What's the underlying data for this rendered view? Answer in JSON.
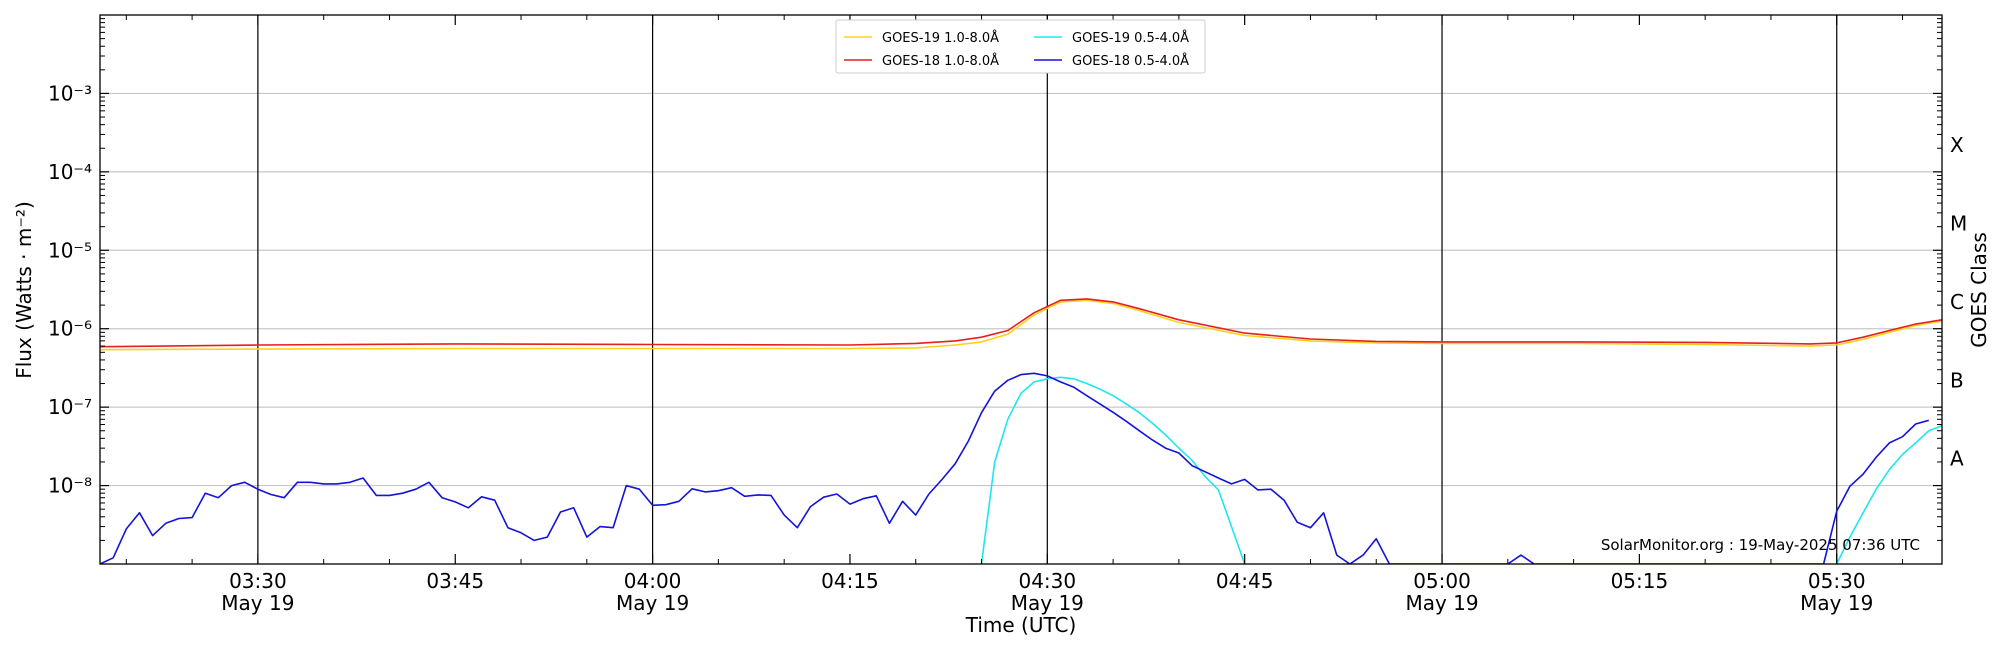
{
  "chart_data": {
    "type": "line",
    "xlabel": "Time (UTC)",
    "ylabel": "Flux (Watts · m⁻²)",
    "y2label": "GOES Class",
    "yscale": "log",
    "ylim": [
      1e-09,
      0.01
    ],
    "xlim": [
      "2025-05-19 03:18",
      "2025-05-19 05:38"
    ],
    "grid": "horizontal",
    "legend_position": "top-center",
    "credit": "SolarMonitor.org : 19-May-2025 07:36 UTC",
    "y_ticks": [
      {
        "value": 0.001,
        "label": "10⁻³"
      },
      {
        "value": 0.0001,
        "label": "10⁻⁴"
      },
      {
        "value": 1e-05,
        "label": "10⁻⁵"
      },
      {
        "value": 1e-06,
        "label": "10⁻⁶"
      },
      {
        "value": 1e-07,
        "label": "10⁻⁷"
      },
      {
        "value": 1e-08,
        "label": "10⁻⁸"
      }
    ],
    "x_ticks": [
      {
        "time": "03:30",
        "label": "03:30",
        "sublabel": "May 19",
        "major": true
      },
      {
        "time": "03:45",
        "label": "03:45",
        "sublabel": "",
        "major": false
      },
      {
        "time": "04:00",
        "label": "04:00",
        "sublabel": "May 19",
        "major": true
      },
      {
        "time": "04:15",
        "label": "04:15",
        "sublabel": "",
        "major": false
      },
      {
        "time": "04:30",
        "label": "04:30",
        "sublabel": "May 19",
        "major": true
      },
      {
        "time": "04:45",
        "label": "04:45",
        "sublabel": "",
        "major": false
      },
      {
        "time": "05:00",
        "label": "05:00",
        "sublabel": "May 19",
        "major": true
      },
      {
        "time": "05:15",
        "label": "05:15",
        "sublabel": "",
        "major": false
      },
      {
        "time": "05:30",
        "label": "05:30",
        "sublabel": "May 19",
        "major": true
      }
    ],
    "goes_classes": [
      {
        "label": "X",
        "value": 0.00022
      },
      {
        "label": "M",
        "value": 2.2e-05
      },
      {
        "label": "C",
        "value": 2.2e-06
      },
      {
        "label": "B",
        "value": 2.2e-07
      },
      {
        "label": "A",
        "value": 2.2e-08
      }
    ],
    "series": [
      {
        "name": "GOES-19 1.0-8.0Å",
        "color": "#ffd11a",
        "points": [
          [
            "03:18",
            5.4e-07
          ],
          [
            "03:30",
            5.5e-07
          ],
          [
            "03:45",
            5.6e-07
          ],
          [
            "04:00",
            5.6e-07
          ],
          [
            "04:15",
            5.6e-07
          ],
          [
            "04:20",
            5.7e-07
          ],
          [
            "04:23",
            6.2e-07
          ],
          [
            "04:25",
            6.8e-07
          ],
          [
            "04:27",
            8.5e-07
          ],
          [
            "04:29",
            1.5e-06
          ],
          [
            "04:31",
            2.2e-06
          ],
          [
            "04:33",
            2.3e-06
          ],
          [
            "04:35",
            2.1e-06
          ],
          [
            "04:37",
            1.7e-06
          ],
          [
            "04:40",
            1.2e-06
          ],
          [
            "04:45",
            8.2e-07
          ],
          [
            "04:50",
            7e-07
          ],
          [
            "04:55",
            6.6e-07
          ],
          [
            "05:00",
            6.5e-07
          ],
          [
            "05:10",
            6.5e-07
          ],
          [
            "05:20",
            6.3e-07
          ],
          [
            "05:28",
            6e-07
          ],
          [
            "05:30",
            6.2e-07
          ],
          [
            "05:32",
            7.3e-07
          ],
          [
            "05:34",
            9e-07
          ],
          [
            "05:36",
            1.1e-06
          ],
          [
            "05:38",
            1.25e-06
          ]
        ]
      },
      {
        "name": "GOES-18 1.0-8.0Å",
        "color": "#e81f1f",
        "points": [
          [
            "03:18",
            5.9e-07
          ],
          [
            "03:30",
            6.2e-07
          ],
          [
            "03:45",
            6.4e-07
          ],
          [
            "04:00",
            6.3e-07
          ],
          [
            "04:15",
            6.2e-07
          ],
          [
            "04:20",
            6.5e-07
          ],
          [
            "04:23",
            7e-07
          ],
          [
            "04:25",
            7.8e-07
          ],
          [
            "04:27",
            9.5e-07
          ],
          [
            "04:29",
            1.6e-06
          ],
          [
            "04:31",
            2.3e-06
          ],
          [
            "04:33",
            2.4e-06
          ],
          [
            "04:35",
            2.2e-06
          ],
          [
            "04:37",
            1.8e-06
          ],
          [
            "04:40",
            1.3e-06
          ],
          [
            "04:45",
            8.8e-07
          ],
          [
            "04:50",
            7.4e-07
          ],
          [
            "04:55",
            6.9e-07
          ],
          [
            "05:00",
            6.8e-07
          ],
          [
            "05:10",
            6.8e-07
          ],
          [
            "05:20",
            6.7e-07
          ],
          [
            "05:28",
            6.4e-07
          ],
          [
            "05:30",
            6.6e-07
          ],
          [
            "05:32",
            7.8e-07
          ],
          [
            "05:34",
            9.5e-07
          ],
          [
            "05:36",
            1.15e-06
          ],
          [
            "05:38",
            1.3e-06
          ]
        ]
      },
      {
        "name": "GOES-19 0.5-4.0Å",
        "color": "#1ee6f0",
        "segments": [
          [
            [
              "04:25",
              1e-09
            ],
            [
              "04:26",
              2e-08
            ],
            [
              "04:27",
              7e-08
            ],
            [
              "04:28",
              1.5e-07
            ],
            [
              "04:29",
              2.1e-07
            ],
            [
              "04:30",
              2.3e-07
            ],
            [
              "04:31",
              2.4e-07
            ],
            [
              "04:32",
              2.3e-07
            ],
            [
              "04:33",
              2e-07
            ],
            [
              "04:34",
              1.7e-07
            ],
            [
              "04:35",
              1.4e-07
            ],
            [
              "04:36",
              1.1e-07
            ],
            [
              "04:37",
              8.5e-08
            ],
            [
              "04:38",
              6.2e-08
            ],
            [
              "04:39",
              4.4e-08
            ],
            [
              "04:40",
              3e-08
            ],
            [
              "04:41",
              2.1e-08
            ],
            [
              "04:42",
              1.3e-08
            ],
            [
              "04:43",
              8.8e-09
            ],
            [
              "04:44",
              3e-09
            ],
            [
              "04:45",
              1e-09
            ]
          ],
          [
            [
              "05:30",
              1e-09
            ],
            [
              "05:31",
              2.2e-09
            ],
            [
              "05:32",
              4.5e-09
            ],
            [
              "05:33",
              9e-09
            ],
            [
              "05:34",
              1.6e-08
            ],
            [
              "05:35",
              2.5e-08
            ],
            [
              "05:36",
              3.5e-08
            ],
            [
              "05:37",
              5e-08
            ],
            [
              "05:38",
              5.8e-08
            ]
          ]
        ]
      },
      {
        "name": "GOES-18 0.5-4.0Å",
        "color": "#1414d9",
        "points": [
          [
            "03:18",
            1e-09
          ],
          [
            "03:19",
            1.2e-09
          ],
          [
            "03:20",
            2.8e-09
          ],
          [
            "03:21",
            4.5e-09
          ],
          [
            "03:22",
            2.3e-09
          ],
          [
            "03:23",
            3.3e-09
          ],
          [
            "03:24",
            3.8e-09
          ],
          [
            "03:25",
            3.9e-09
          ],
          [
            "03:26",
            8e-09
          ],
          [
            "03:27",
            7e-09
          ],
          [
            "03:28",
            1e-08
          ],
          [
            "03:29",
            1.1e-08
          ],
          [
            "03:30",
            9e-09
          ],
          [
            "03:31",
            7.7e-09
          ],
          [
            "03:32",
            7e-09
          ],
          [
            "03:33",
            1.1e-08
          ],
          [
            "03:34",
            1.1e-08
          ],
          [
            "03:35",
            1.05e-08
          ],
          [
            "03:36",
            1.05e-08
          ],
          [
            "03:37",
            1.1e-08
          ],
          [
            "03:38",
            1.25e-08
          ],
          [
            "03:39",
            7.5e-09
          ],
          [
            "03:40",
            7.5e-09
          ],
          [
            "03:41",
            8e-09
          ],
          [
            "03:42",
            9e-09
          ],
          [
            "03:43",
            1.1e-08
          ],
          [
            "03:44",
            7e-09
          ],
          [
            "03:45",
            6.2e-09
          ],
          [
            "03:46",
            5.2e-09
          ],
          [
            "03:47",
            7.2e-09
          ],
          [
            "03:48",
            6.5e-09
          ],
          [
            "03:49",
            2.9e-09
          ],
          [
            "03:50",
            2.5e-09
          ],
          [
            "03:51",
            2e-09
          ],
          [
            "03:52",
            2.2e-09
          ],
          [
            "03:53",
            4.6e-09
          ],
          [
            "03:54",
            5.2e-09
          ],
          [
            "03:55",
            2.2e-09
          ],
          [
            "03:56",
            3e-09
          ],
          [
            "03:57",
            2.9e-09
          ],
          [
            "03:58",
            1e-08
          ],
          [
            "03:59",
            9e-09
          ],
          [
            "04:00",
            5.6e-09
          ],
          [
            "04:01",
            5.7e-09
          ],
          [
            "04:02",
            6.3e-09
          ],
          [
            "04:03",
            9.1e-09
          ],
          [
            "04:04",
            8.3e-09
          ],
          [
            "04:05",
            8.6e-09
          ],
          [
            "04:06",
            9.4e-09
          ],
          [
            "04:07",
            7.3e-09
          ],
          [
            "04:08",
            7.6e-09
          ],
          [
            "04:09",
            7.5e-09
          ],
          [
            "04:10",
            4.2e-09
          ],
          [
            "04:11",
            2.9e-09
          ],
          [
            "04:12",
            5.4e-09
          ],
          [
            "04:13",
            7.1e-09
          ],
          [
            "04:14",
            7.8e-09
          ],
          [
            "04:15",
            5.8e-09
          ],
          [
            "04:16",
            6.8e-09
          ],
          [
            "04:17",
            7.4e-09
          ],
          [
            "04:18",
            3.3e-09
          ],
          [
            "04:19",
            6.3e-09
          ],
          [
            "04:20",
            4.2e-09
          ],
          [
            "04:21",
            7.8e-09
          ],
          [
            "04:22",
            1.2e-08
          ],
          [
            "04:23",
            1.9e-08
          ],
          [
            "04:24",
            3.7e-08
          ],
          [
            "04:25",
            8.5e-08
          ],
          [
            "04:26",
            1.6e-07
          ],
          [
            "04:27",
            2.2e-07
          ],
          [
            "04:28",
            2.6e-07
          ],
          [
            "04:29",
            2.7e-07
          ],
          [
            "04:30",
            2.5e-07
          ],
          [
            "04:31",
            2.1e-07
          ],
          [
            "04:32",
            1.8e-07
          ],
          [
            "04:33",
            1.4e-07
          ],
          [
            "04:34",
            1.1e-07
          ],
          [
            "04:35",
            8.6e-08
          ],
          [
            "04:36",
            6.6e-08
          ],
          [
            "04:37",
            5e-08
          ],
          [
            "04:38",
            3.8e-08
          ],
          [
            "04:39",
            3e-08
          ],
          [
            "04:40",
            2.6e-08
          ],
          [
            "04:41",
            1.8e-08
          ],
          [
            "04:42",
            1.5e-08
          ],
          [
            "04:43",
            1.25e-08
          ],
          [
            "04:44",
            1.05e-08
          ],
          [
            "04:45",
            1.2e-08
          ],
          [
            "04:46",
            8.8e-09
          ],
          [
            "04:47",
            9e-09
          ],
          [
            "04:48",
            6.5e-09
          ],
          [
            "04:49",
            3.4e-09
          ],
          [
            "04:50",
            2.9e-09
          ],
          [
            "04:51",
            4.5e-09
          ],
          [
            "04:52",
            1.3e-09
          ],
          [
            "04:53",
            1e-09
          ],
          [
            "04:54",
            1.3e-09
          ],
          [
            "04:55",
            2.1e-09
          ],
          [
            "04:56",
            1e-09
          ],
          [
            "05:05",
            1e-09
          ],
          [
            "05:06",
            1.3e-09
          ],
          [
            "05:07",
            1e-09
          ],
          [
            "05:29",
            1e-09
          ],
          [
            "05:30",
            4.7e-09
          ],
          [
            "05:31",
            9.8e-09
          ],
          [
            "05:32",
            1.4e-08
          ],
          [
            "05:33",
            2.3e-08
          ],
          [
            "05:34",
            3.5e-08
          ],
          [
            "05:35",
            4.2e-08
          ],
          [
            "05:36",
            6.1e-08
          ],
          [
            "05:37",
            6.8e-08
          ]
        ]
      }
    ]
  }
}
